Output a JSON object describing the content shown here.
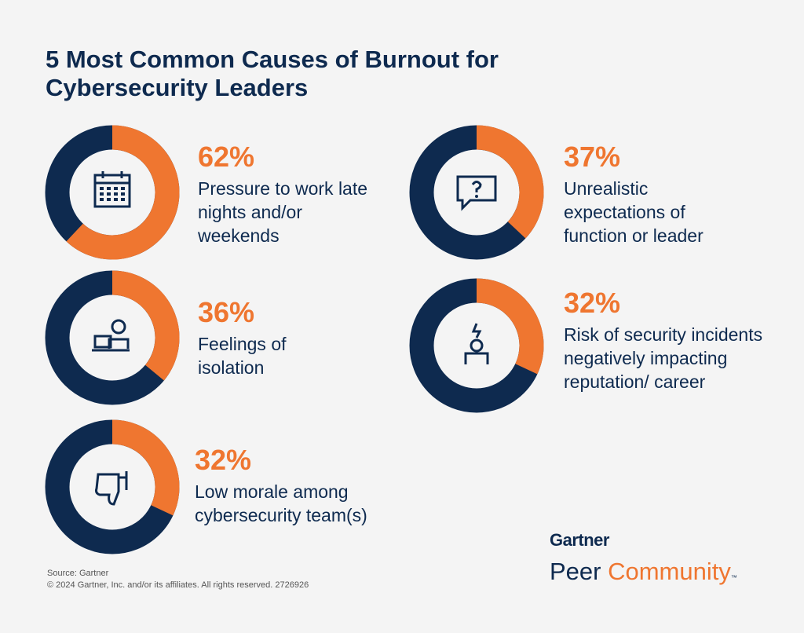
{
  "title": "5 Most Common Causes of Burnout for Cybersecurity Leaders",
  "source": "Source: Gartner",
  "copyright": "© 2024 Gartner, Inc. and/or its affiliates. All rights reserved. 2726926",
  "logo": {
    "brand": "Gartner",
    "word_1": "Peer",
    "word_2": "Community",
    "mark": "™"
  },
  "chart_data": [
    {
      "type": "donut",
      "values": [
        62
      ],
      "value_labels": [
        "62%"
      ],
      "label": "Pressure to work late nights and/or weekends",
      "color": "#ef7630",
      "track_color": "#0e2a4f"
    },
    {
      "type": "donut",
      "values": [
        37
      ],
      "value_labels": [
        "37%"
      ],
      "label": "Unrealistic expectations of function or leader",
      "color": "#ef7630",
      "track_color": "#0e2a4f"
    },
    {
      "type": "donut",
      "values": [
        36
      ],
      "value_labels": [
        "36%"
      ],
      "label": "Feelings of isolation",
      "color": "#ef7630",
      "track_color": "#0e2a4f"
    },
    {
      "type": "donut",
      "values": [
        32
      ],
      "value_labels": [
        "32%"
      ],
      "label": "Risk of security incidents negatively impacting reputation/ career",
      "color": "#ef7630",
      "track_color": "#0e2a4f"
    },
    {
      "type": "donut",
      "values": [
        32
      ],
      "value_labels": [
        "32%"
      ],
      "label": "Low morale among cybersecurity team(s)",
      "color": "#ef7630",
      "track_color": "#0e2a4f"
    }
  ]
}
